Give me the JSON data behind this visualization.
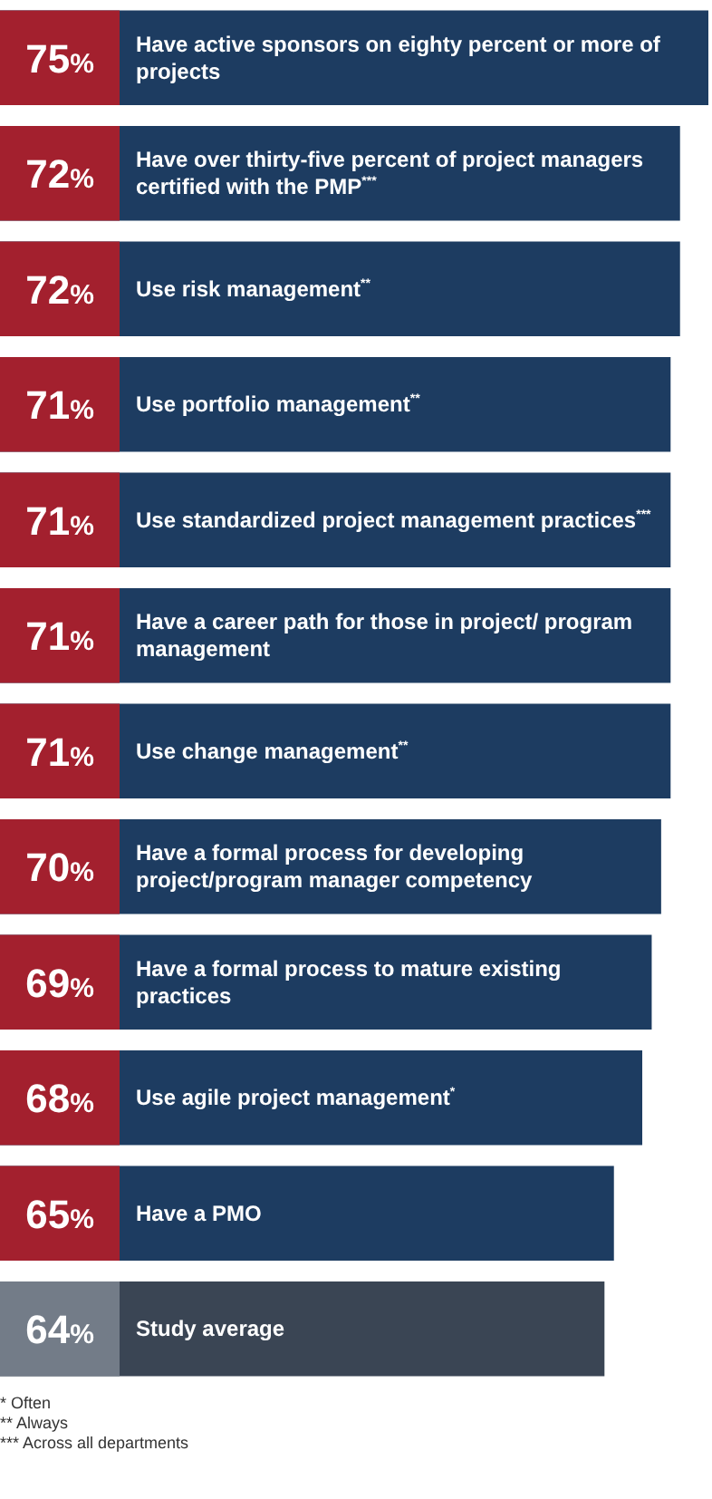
{
  "chart_data": {
    "type": "bar",
    "orientation": "horizontal",
    "categories": [
      "Have active sponsors on eighty percent or more of projects",
      "Have over thirty-five percent of project managers certified with the PMP$^{***}$",
      "Use risk management$^{**}$",
      "Use portfolio management$^{**}$",
      "Use standardized project management practices$^{***}$",
      "Have a career path for those in project/ program management",
      "Use change management$^{**}$",
      "Have a formal process for developing project/program manager competency",
      "Have a formal process to mature existing practices",
      "Use agile project management$^{*}$",
      "Have a PMO",
      "Study average"
    ],
    "values": [
      75,
      72,
      72,
      71,
      71,
      71,
      71,
      70,
      69,
      68,
      65,
      64
    ],
    "value_labels": [
      "75%",
      "72%",
      "72%",
      "71%",
      "71%",
      "71%",
      "71%",
      "70%",
      "69%",
      "68%",
      "65%",
      "64%"
    ],
    "colors": [
      "#1d3c61",
      "#1d3c61",
      "#1d3c61",
      "#1d3c61",
      "#1d3c61",
      "#1d3c61",
      "#1d3c61",
      "#1d3c61",
      "#1d3c61",
      "#1d3c61",
      "#1d3c61",
      "#3a4554"
    ],
    "tick_labels": false,
    "legend": false,
    "annotations": [
      "*  Often",
      "** Always",
      "*** Across all departments"
    ]
  }
}
